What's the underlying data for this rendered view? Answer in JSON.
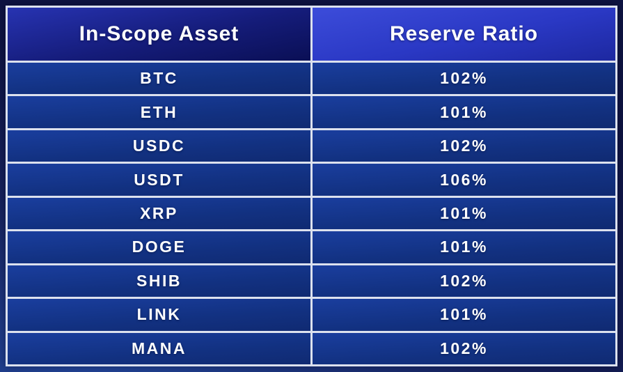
{
  "chart_data": {
    "type": "table",
    "columns": [
      "In-Scope Asset",
      "Reserve Ratio"
    ],
    "rows": [
      [
        "BTC",
        "102%"
      ],
      [
        "ETH",
        "101%"
      ],
      [
        "USDC",
        "102%"
      ],
      [
        "USDT",
        "106%"
      ],
      [
        "XRP",
        "101%"
      ],
      [
        "DOGE",
        "101%"
      ],
      [
        "SHIB",
        "102%"
      ],
      [
        "LINK",
        "101%"
      ],
      [
        "MANA",
        "102%"
      ]
    ]
  },
  "colors": {
    "background_deep": "#0e1342",
    "background_glow": "#23479c",
    "border": "#dce1ee",
    "header_left_dark": "#0a0f55",
    "header_right_bright": "#3c4cda",
    "row_blue": "#123181",
    "text": "#ffffff"
  }
}
